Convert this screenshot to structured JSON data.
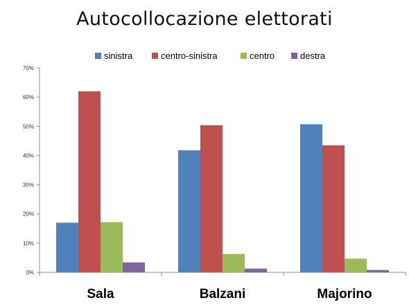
{
  "chart_data": {
    "type": "bar",
    "title": "Autocollocazione elettorati",
    "categories": [
      "Sala",
      "Balzani",
      "Majorino"
    ],
    "series": [
      {
        "name": "sinistra",
        "color": "#4F81BD",
        "values": [
          17,
          41.8,
          50.7
        ]
      },
      {
        "name": "centro-sinistra",
        "color": "#C0504D",
        "values": [
          62,
          50.4,
          43.5
        ]
      },
      {
        "name": "centro",
        "color": "#9BBB59",
        "values": [
          17.2,
          6.3,
          4.7
        ]
      },
      {
        "name": "destra",
        "color": "#8064A2",
        "values": [
          3.4,
          1.3,
          0.8
        ]
      }
    ],
    "ylim": [
      0,
      70
    ],
    "yticks": [
      0,
      10,
      20,
      30,
      40,
      50,
      60,
      70
    ],
    "ytick_labels": [
      "0%",
      "10%",
      "20%",
      "30%",
      "40%",
      "50%",
      "60%",
      "70%"
    ],
    "grid": false,
    "legend_position": "top"
  }
}
